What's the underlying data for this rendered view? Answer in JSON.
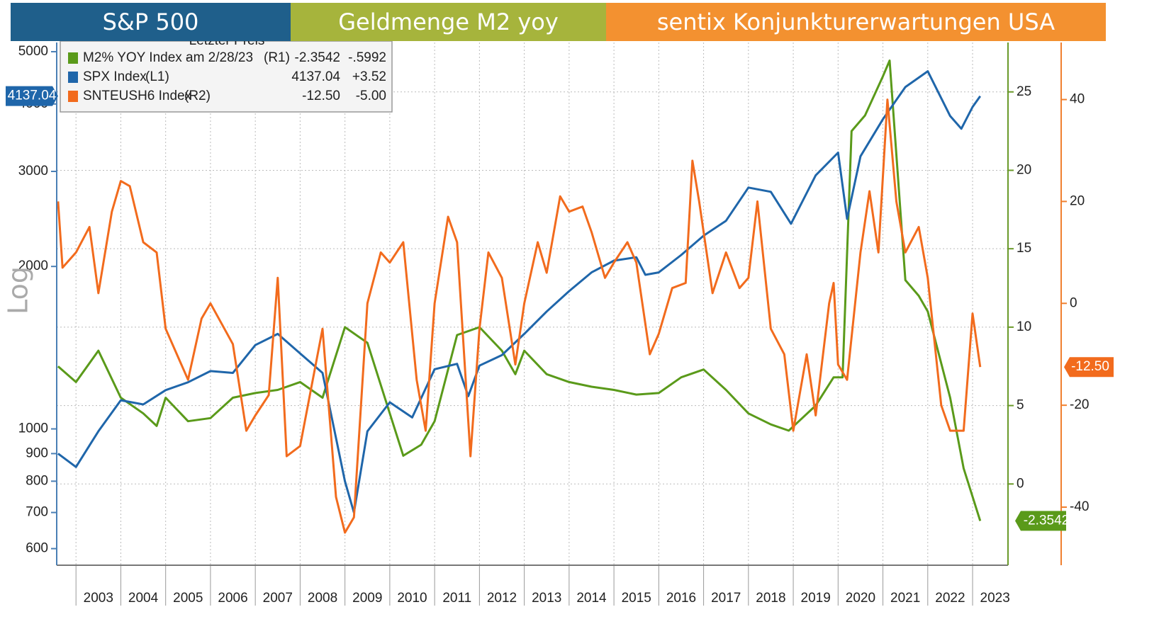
{
  "chart_data": {
    "type": "line",
    "banners": [
      "S&P 500",
      "Geldmenge M2 yoy",
      "sentix Konjunkturerwartungen USA"
    ],
    "banner_colors": [
      "#1f5f8b",
      "#a6b43c",
      "#f39130"
    ],
    "y_scale_label": "Log",
    "yscale": "log",
    "grid": true,
    "legend": {
      "header": "Letzter Preis",
      "rows": [
        {
          "name": "M2% YOY Index -",
          "date": "am 2/28/23",
          "axis_label": "(R1)",
          "last": "-2.3542",
          "change": "-.5992"
        },
        {
          "name": "SPX Index",
          "axis_label": "(L1)",
          "last": "4137.04",
          "change": "+3.52"
        },
        {
          "name": "SNTEUSH6 Index",
          "axis_label": "(R2)",
          "last": "-12.50",
          "change": "-5.00"
        }
      ]
    },
    "xlim": [
      2002.57,
      2023.79
    ],
    "xticks": [
      2003,
      2004,
      2005,
      2006,
      2007,
      2008,
      2009,
      2010,
      2011,
      2012,
      2013,
      2014,
      2015,
      2016,
      2017,
      2018,
      2019,
      2020,
      2021,
      2022,
      2023
    ],
    "ylim": [
      559,
      5200
    ],
    "yticks": [
      600,
      700,
      800,
      900,
      1000,
      2000,
      3000,
      4000,
      5000
    ],
    "y2lim": [
      -5.18,
      28.15
    ],
    "y2ticks": [
      0,
      5,
      10,
      15,
      20,
      25
    ],
    "y3lim": [
      -51.4,
      51.2
    ],
    "y3ticks": [
      -40,
      -20,
      0,
      20,
      40
    ],
    "series": [
      {
        "name": "M2% YOY Index",
        "color": "#5a9a1a",
        "axis": "y2",
        "x": [
          2002.6,
          2003.0,
          2003.5,
          2004.0,
          2004.5,
          2004.8,
          2005.0,
          2005.5,
          2006.0,
          2006.5,
          2007.0,
          2007.5,
          2008.0,
          2008.5,
          2009.0,
          2009.5,
          2010.0,
          2010.3,
          2010.7,
          2011.0,
          2011.5,
          2012.0,
          2012.5,
          2012.8,
          2013.0,
          2013.5,
          2014.0,
          2014.5,
          2015.0,
          2015.5,
          2016.0,
          2016.5,
          2017.0,
          2017.5,
          2018.0,
          2018.5,
          2018.9,
          2019.2,
          2019.5,
          2019.9,
          2020.1,
          2020.3,
          2020.6,
          2021.0,
          2021.15,
          2021.5,
          2021.8,
          2022.0,
          2022.5,
          2022.8,
          2023.17
        ],
        "values": [
          7.5,
          6.5,
          8.5,
          5.5,
          4.5,
          3.7,
          5.5,
          4,
          4.2,
          5.5,
          5.8,
          6.0,
          6.5,
          5.5,
          10,
          9,
          4.5,
          1.8,
          2.5,
          4,
          9.5,
          10,
          8.5,
          7,
          8.5,
          7,
          6.5,
          6.2,
          6,
          5.7,
          5.8,
          6.8,
          7.3,
          6.0,
          4.5,
          3.8,
          3.4,
          4.2,
          5.0,
          6.8,
          6.8,
          22.5,
          23.5,
          26,
          27,
          13,
          12,
          11,
          5.5,
          1,
          -2.3542
        ]
      },
      {
        "name": "SPX Index",
        "color": "#1f66aa",
        "axis": "y",
        "x": [
          2002.6,
          2003.0,
          2003.5,
          2004.0,
          2004.5,
          2005.0,
          2005.5,
          2006.0,
          2006.5,
          2007.0,
          2007.5,
          2008.0,
          2008.5,
          2009.0,
          2009.2,
          2009.5,
          2010.0,
          2010.5,
          2011.0,
          2011.5,
          2011.75,
          2012.0,
          2012.5,
          2013.0,
          2013.5,
          2014.0,
          2014.5,
          2015.0,
          2015.5,
          2015.7,
          2016.0,
          2016.5,
          2017.0,
          2017.5,
          2018.0,
          2018.5,
          2018.95,
          2019.5,
          2020.0,
          2020.2,
          2020.5,
          2021.0,
          2021.5,
          2022.0,
          2022.5,
          2022.75,
          2023.0,
          2023.17
        ],
        "values": [
          900,
          850,
          990,
          1130,
          1110,
          1180,
          1220,
          1280,
          1270,
          1430,
          1500,
          1380,
          1270,
          800,
          700,
          990,
          1120,
          1050,
          1290,
          1320,
          1150,
          1310,
          1370,
          1500,
          1650,
          1800,
          1950,
          2050,
          2080,
          1930,
          1950,
          2100,
          2280,
          2430,
          2800,
          2750,
          2400,
          2950,
          3250,
          2450,
          3200,
          3750,
          4300,
          4600,
          3800,
          3600,
          3950,
          4137.04
        ]
      },
      {
        "name": "SNTEUSH6 Index",
        "color": "#f26b1d",
        "axis": "y3",
        "x": [
          2002.6,
          2002.7,
          2003.0,
          2003.3,
          2003.5,
          2003.8,
          2004.0,
          2004.2,
          2004.5,
          2004.8,
          2005.0,
          2005.5,
          2005.8,
          2006.0,
          2006.5,
          2006.8,
          2007.0,
          2007.3,
          2007.5,
          2007.7,
          2008.0,
          2008.5,
          2008.8,
          2009.0,
          2009.2,
          2009.5,
          2009.8,
          2010.0,
          2010.3,
          2010.6,
          2010.8,
          2011.0,
          2011.3,
          2011.5,
          2011.8,
          2012.0,
          2012.2,
          2012.5,
          2012.8,
          2013.0,
          2013.3,
          2013.5,
          2013.8,
          2014.0,
          2014.3,
          2014.5,
          2014.8,
          2015.0,
          2015.3,
          2015.5,
          2015.8,
          2016.0,
          2016.3,
          2016.6,
          2016.75,
          2016.9,
          2017.2,
          2017.5,
          2017.8,
          2018.0,
          2018.2,
          2018.5,
          2018.8,
          2019.0,
          2019.3,
          2019.5,
          2019.8,
          2019.9,
          2020.0,
          2020.2,
          2020.5,
          2020.7,
          2020.9,
          2021.1,
          2021.3,
          2021.5,
          2021.8,
          2022.0,
          2022.3,
          2022.5,
          2022.8,
          2023.0,
          2023.17
        ],
        "values": [
          20,
          7,
          10,
          15,
          2,
          18,
          24,
          23,
          12,
          10,
          -5,
          -15,
          -3,
          0,
          -8,
          -25,
          -22,
          -18,
          5,
          -30,
          -28,
          -5,
          -38,
          -45,
          -42,
          0,
          10,
          8,
          12,
          -15,
          -25,
          0,
          17,
          12,
          -30,
          -5,
          10,
          5,
          -12,
          0,
          12,
          6,
          21,
          18,
          19,
          14,
          5,
          8,
          12,
          8,
          -10,
          -6,
          3,
          4,
          28,
          20,
          2,
          10,
          3,
          5,
          20,
          -5,
          -10,
          -25,
          -10,
          -22,
          0,
          4,
          -12,
          -15,
          10,
          22,
          10,
          40,
          20,
          10,
          15,
          5,
          -20,
          -25,
          -25,
          -2,
          -12.5
        ]
      }
    ]
  }
}
